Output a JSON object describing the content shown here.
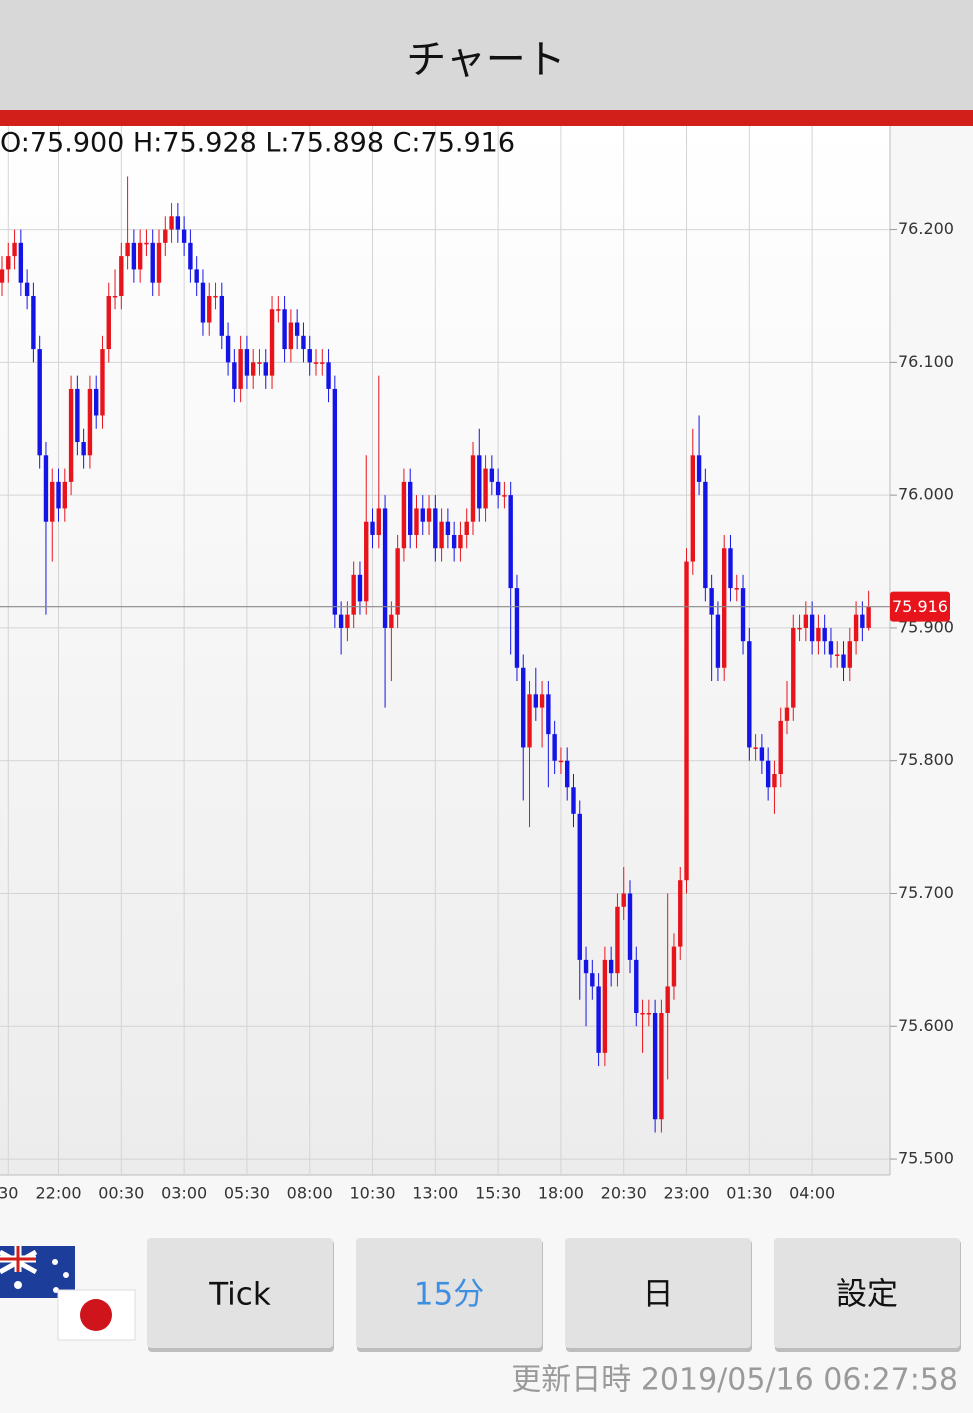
{
  "header": {
    "title": "チャート"
  },
  "chart_data": {
    "type": "candlestick",
    "ohlc_text": "O:75.900 H:75.928 L:75.898 C:75.916",
    "categories": [
      null,
      "30",
      null,
      null,
      null,
      null,
      null,
      null,
      null,
      "22:00",
      null,
      null,
      null,
      null,
      null,
      null,
      null,
      null,
      null,
      "00:30",
      null,
      null,
      null,
      null,
      null,
      null,
      null,
      null,
      null,
      "03:00",
      null,
      null,
      null,
      null,
      null,
      null,
      null,
      null,
      null,
      "05:30",
      null,
      null,
      null,
      null,
      null,
      null,
      null,
      null,
      null,
      "08:00",
      null,
      null,
      null,
      null,
      null,
      null,
      null,
      null,
      null,
      "10:30",
      null,
      null,
      null,
      null,
      null,
      null,
      null,
      null,
      null,
      "13:00",
      null,
      null,
      null,
      null,
      null,
      null,
      null,
      null,
      null,
      "15:30",
      null,
      null,
      null,
      null,
      null,
      null,
      null,
      null,
      null,
      "18:00",
      null,
      null,
      null,
      null,
      null,
      null,
      null,
      null,
      null,
      "20:30",
      null,
      null,
      null,
      null,
      null,
      null,
      null,
      null,
      null,
      "23:00",
      null,
      null,
      null,
      null,
      null,
      null,
      null,
      null,
      null,
      "01:30",
      null,
      null,
      null,
      null,
      null,
      null,
      null,
      null,
      null,
      "04:00",
      null,
      null,
      null,
      null,
      null,
      null,
      null,
      null,
      null
    ],
    "open": [
      76.16,
      76.17,
      76.18,
      76.19,
      76.16,
      76.15,
      76.11,
      76.03,
      75.98,
      76.01,
      75.99,
      76.01,
      76.08,
      76.04,
      76.03,
      76.08,
      76.06,
      76.11,
      76.15,
      76.15,
      76.18,
      76.19,
      76.17,
      76.19,
      76.19,
      76.16,
      76.19,
      76.2,
      76.21,
      76.2,
      76.19,
      76.17,
      76.16,
      76.13,
      76.15,
      76.15,
      76.12,
      76.1,
      76.08,
      76.11,
      76.09,
      76.1,
      76.1,
      76.09,
      76.14,
      76.14,
      76.11,
      76.13,
      76.12,
      76.11,
      76.1,
      76.1,
      76.1,
      76.08,
      75.91,
      75.9,
      75.91,
      75.94,
      75.92,
      75.98,
      75.97,
      75.99,
      75.9,
      75.91,
      75.96,
      76.01,
      75.97,
      75.99,
      75.98,
      75.99,
      75.96,
      75.98,
      75.97,
      75.96,
      75.97,
      75.98,
      76.03,
      75.99,
      76.02,
      76.01,
      76.0,
      76.0,
      75.93,
      75.87,
      75.81,
      75.85,
      75.84,
      75.85,
      75.82,
      75.8,
      75.8,
      75.78,
      75.76,
      75.65,
      75.64,
      75.63,
      75.58,
      75.65,
      75.64,
      75.69,
      75.7,
      75.65,
      75.61,
      75.61,
      75.61,
      75.53,
      75.61,
      75.63,
      75.66,
      75.71,
      75.95,
      76.03,
      76.01,
      75.93,
      75.91,
      75.87,
      75.96,
      75.93,
      75.93,
      75.89,
      75.81,
      75.81,
      75.8,
      75.78,
      75.79,
      75.83,
      75.84,
      75.9,
      75.9,
      75.91,
      75.89,
      75.9,
      75.89,
      75.88,
      75.88,
      75.87,
      75.89,
      75.91,
      75.9
    ],
    "high": [
      76.18,
      76.19,
      76.2,
      76.2,
      76.17,
      76.16,
      76.12,
      76.04,
      76.02,
      76.02,
      76.02,
      76.09,
      76.09,
      76.05,
      76.09,
      76.09,
      76.12,
      76.16,
      76.17,
      76.19,
      76.24,
      76.2,
      76.2,
      76.2,
      76.2,
      76.2,
      76.21,
      76.22,
      76.22,
      76.21,
      76.2,
      76.18,
      76.17,
      76.16,
      76.16,
      76.16,
      76.13,
      76.11,
      76.12,
      76.12,
      76.11,
      76.11,
      76.11,
      76.15,
      76.15,
      76.15,
      76.14,
      76.14,
      76.13,
      76.12,
      76.11,
      76.11,
      76.11,
      76.09,
      75.92,
      75.92,
      75.95,
      75.95,
      76.03,
      75.99,
      76.09,
      76.0,
      75.92,
      75.97,
      76.02,
      76.02,
      76.0,
      76.0,
      76.0,
      76.0,
      75.99,
      75.99,
      75.98,
      75.98,
      75.99,
      76.04,
      76.05,
      76.03,
      76.03,
      76.02,
      76.01,
      76.01,
      75.94,
      75.88,
      75.86,
      75.87,
      75.86,
      75.86,
      75.83,
      75.81,
      75.81,
      75.79,
      75.77,
      75.66,
      75.65,
      75.64,
      75.66,
      75.66,
      75.7,
      75.72,
      75.71,
      75.66,
      75.62,
      75.62,
      75.62,
      75.62,
      75.7,
      75.67,
      75.72,
      75.96,
      76.05,
      76.06,
      76.02,
      75.94,
      75.92,
      75.97,
      75.97,
      75.94,
      75.94,
      75.9,
      75.82,
      75.82,
      75.81,
      75.8,
      75.84,
      75.86,
      75.91,
      75.91,
      75.92,
      75.92,
      75.91,
      75.91,
      75.9,
      75.89,
      75.89,
      75.9,
      75.92,
      75.92,
      75.928
    ],
    "low": [
      76.15,
      76.16,
      76.17,
      76.15,
      76.14,
      76.1,
      76.02,
      75.91,
      75.95,
      75.98,
      75.98,
      76.0,
      76.03,
      76.02,
      76.02,
      76.05,
      76.05,
      76.1,
      76.14,
      76.14,
      76.17,
      76.16,
      76.16,
      76.18,
      76.15,
      76.15,
      76.18,
      76.19,
      76.19,
      76.18,
      76.16,
      76.15,
      76.12,
      76.12,
      76.14,
      76.11,
      76.09,
      76.07,
      76.07,
      76.08,
      76.08,
      76.09,
      76.08,
      76.08,
      76.13,
      76.1,
      76.1,
      76.11,
      76.1,
      76.09,
      76.09,
      76.09,
      76.07,
      75.9,
      75.88,
      75.89,
      75.9,
      75.91,
      75.91,
      75.96,
      75.96,
      75.84,
      75.86,
      75.9,
      75.95,
      75.96,
      75.96,
      75.97,
      75.97,
      75.95,
      75.95,
      75.96,
      75.95,
      75.95,
      75.96,
      75.97,
      75.98,
      75.98,
      76.0,
      75.99,
      75.99,
      75.88,
      75.86,
      75.77,
      75.75,
      75.83,
      75.81,
      75.78,
      75.79,
      75.79,
      75.77,
      75.75,
      75.62,
      75.6,
      75.62,
      75.57,
      75.57,
      75.63,
      75.63,
      75.68,
      75.64,
      75.6,
      75.58,
      75.6,
      75.52,
      75.52,
      75.56,
      75.62,
      75.65,
      75.7,
      75.94,
      76.0,
      75.92,
      75.86,
      75.86,
      75.86,
      75.92,
      75.92,
      75.88,
      75.8,
      75.8,
      75.79,
      75.77,
      75.76,
      75.78,
      75.82,
      75.83,
      75.89,
      75.89,
      75.88,
      75.88,
      75.88,
      75.87,
      75.87,
      75.86,
      75.86,
      75.88,
      75.89,
      75.898
    ],
    "close": [
      76.17,
      76.18,
      76.19,
      76.16,
      76.15,
      76.11,
      76.03,
      75.98,
      76.01,
      75.99,
      76.01,
      76.08,
      76.04,
      76.03,
      76.08,
      76.06,
      76.11,
      76.15,
      76.15,
      76.18,
      76.19,
      76.17,
      76.19,
      76.19,
      76.16,
      76.19,
      76.2,
      76.21,
      76.2,
      76.19,
      76.17,
      76.16,
      76.13,
      76.15,
      76.15,
      76.12,
      76.1,
      76.08,
      76.11,
      76.09,
      76.1,
      76.1,
      76.09,
      76.14,
      76.14,
      76.11,
      76.13,
      76.12,
      76.11,
      76.1,
      76.1,
      76.1,
      76.08,
      75.91,
      75.9,
      75.91,
      75.94,
      75.92,
      75.98,
      75.97,
      75.99,
      75.9,
      75.91,
      75.96,
      76.01,
      75.97,
      75.99,
      75.98,
      75.99,
      75.96,
      75.98,
      75.97,
      75.96,
      75.97,
      75.98,
      76.03,
      75.99,
      76.02,
      76.01,
      76.0,
      76.0,
      75.93,
      75.87,
      75.81,
      75.85,
      75.84,
      75.85,
      75.82,
      75.8,
      75.8,
      75.78,
      75.76,
      75.65,
      75.64,
      75.63,
      75.58,
      75.65,
      75.64,
      75.69,
      75.7,
      75.65,
      75.61,
      75.61,
      75.61,
      75.53,
      75.61,
      75.63,
      75.66,
      75.71,
      75.95,
      76.03,
      76.01,
      75.93,
      75.91,
      75.87,
      75.96,
      75.93,
      75.93,
      75.89,
      75.81,
      75.81,
      75.8,
      75.78,
      75.79,
      75.83,
      75.84,
      75.9,
      75.9,
      75.91,
      75.89,
      75.9,
      75.89,
      75.88,
      75.88,
      75.87,
      75.89,
      75.91,
      75.9,
      75.916
    ],
    "up_color": "#e8141c",
    "down_color": "#1414e6",
    "last_price": 75.916,
    "ylim": [
      75.488,
      76.278
    ],
    "yticks": [
      {
        "value": 75.5,
        "label": "75.500"
      },
      {
        "value": 75.6,
        "label": "75.600"
      },
      {
        "value": 75.7,
        "label": "75.700"
      },
      {
        "value": 75.8,
        "label": "75.800"
      },
      {
        "value": 75.9,
        "label": "75.900"
      },
      {
        "value": 76.0,
        "label": "76.000"
      },
      {
        "value": 76.1,
        "label": "76.100"
      },
      {
        "value": 76.2,
        "label": "76.200"
      }
    ],
    "grid": true
  },
  "ui": {
    "buttons": [
      "Tick",
      "15分",
      "日",
      "設定"
    ],
    "active_button": 1,
    "footer": "更新日時 2019/05/16 06:27:58"
  }
}
